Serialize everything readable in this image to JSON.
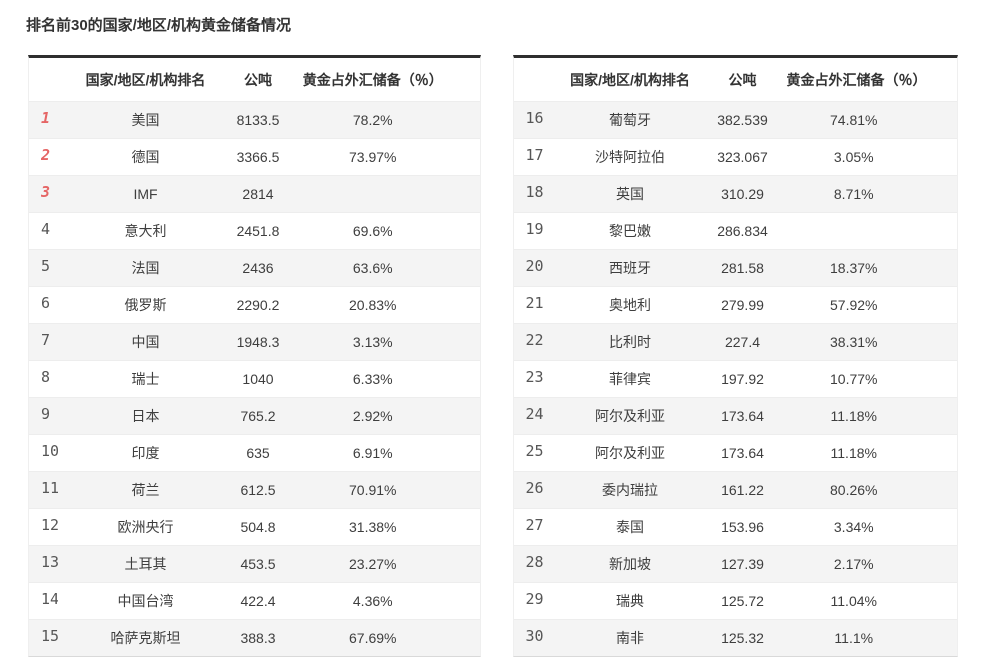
{
  "title": "排名前30的国家/地区/机构黄金储备情况",
  "columns": {
    "rank": "",
    "name": "国家/地区/机构排名",
    "tons": "公吨",
    "pct": "黄金占外汇储备（％）"
  },
  "accent_colors": {
    "top3_rank": "#e56565",
    "rank": "#565656",
    "row_alt_bg": "#f4f4f4",
    "table_top_border": "#2f2f2f"
  },
  "tables": [
    {
      "rows": [
        {
          "rank": "1",
          "name": "美国",
          "tons": "8133.5",
          "pct": "78.2%"
        },
        {
          "rank": "2",
          "name": "德国",
          "tons": "3366.5",
          "pct": "73.97%"
        },
        {
          "rank": "3",
          "name": "IMF",
          "tons": "2814",
          "pct": ""
        },
        {
          "rank": "4",
          "name": "意大利",
          "tons": "2451.8",
          "pct": "69.6%"
        },
        {
          "rank": "5",
          "name": "法国",
          "tons": "2436",
          "pct": "63.6%"
        },
        {
          "rank": "6",
          "name": "俄罗斯",
          "tons": "2290.2",
          "pct": "20.83%"
        },
        {
          "rank": "7",
          "name": "中国",
          "tons": "1948.3",
          "pct": "3.13%"
        },
        {
          "rank": "8",
          "name": "瑞士",
          "tons": "1040",
          "pct": "6.33%"
        },
        {
          "rank": "9",
          "name": "日本",
          "tons": "765.2",
          "pct": "2.92%"
        },
        {
          "rank": "10",
          "name": "印度",
          "tons": "635",
          "pct": "6.91%"
        },
        {
          "rank": "11",
          "name": "荷兰",
          "tons": "612.5",
          "pct": "70.91%"
        },
        {
          "rank": "12",
          "name": "欧洲央行",
          "tons": "504.8",
          "pct": "31.38%"
        },
        {
          "rank": "13",
          "name": "土耳其",
          "tons": "453.5",
          "pct": "23.27%"
        },
        {
          "rank": "14",
          "name": "中国台湾",
          "tons": "422.4",
          "pct": "4.36%"
        },
        {
          "rank": "15",
          "name": "哈萨克斯坦",
          "tons": "388.3",
          "pct": "67.69%"
        }
      ]
    },
    {
      "rows": [
        {
          "rank": "16",
          "name": "葡萄牙",
          "tons": "382.539",
          "pct": "74.81%"
        },
        {
          "rank": "17",
          "name": "沙特阿拉伯",
          "tons": "323.067",
          "pct": "3.05%"
        },
        {
          "rank": "18",
          "name": "英国",
          "tons": "310.29",
          "pct": "8.71%"
        },
        {
          "rank": "19",
          "name": "黎巴嫩",
          "tons": "286.834",
          "pct": ""
        },
        {
          "rank": "20",
          "name": "西班牙",
          "tons": "281.58",
          "pct": "18.37%"
        },
        {
          "rank": "21",
          "name": "奥地利",
          "tons": "279.99",
          "pct": "57.92%"
        },
        {
          "rank": "22",
          "name": "比利时",
          "tons": "227.4",
          "pct": "38.31%"
        },
        {
          "rank": "23",
          "name": "菲律宾",
          "tons": "197.92",
          "pct": "10.77%"
        },
        {
          "rank": "24",
          "name": "阿尔及利亚",
          "tons": "173.64",
          "pct": "11.18%"
        },
        {
          "rank": "25",
          "name": "阿尔及利亚",
          "tons": "173.64",
          "pct": "11.18%"
        },
        {
          "rank": "26",
          "name": "委内瑞拉",
          "tons": "161.22",
          "pct": "80.26%"
        },
        {
          "rank": "27",
          "name": "泰国",
          "tons": "153.96",
          "pct": "3.34%"
        },
        {
          "rank": "28",
          "name": "新加坡",
          "tons": "127.39",
          "pct": "2.17%"
        },
        {
          "rank": "29",
          "name": "瑞典",
          "tons": "125.72",
          "pct": "11.04%"
        },
        {
          "rank": "30",
          "name": "南非",
          "tons": "125.32",
          "pct": "11.1%"
        }
      ]
    }
  ],
  "chart_data": {
    "type": "table",
    "title": "排名前30的国家/地区/机构黄金储备情况",
    "columns": [
      "排名",
      "国家/地区/机构排名",
      "公吨",
      "黄金占外汇储备（％）"
    ],
    "layout": "two side-by-side tables, ranks 1-15 left and 16-30 right, alternating gray/white rows, top-3 ranks highlighted red",
    "rows": [
      [
        1,
        "美国",
        8133.5,
        "78.2%"
      ],
      [
        2,
        "德国",
        3366.5,
        "73.97%"
      ],
      [
        3,
        "IMF",
        2814,
        ""
      ],
      [
        4,
        "意大利",
        2451.8,
        "69.6%"
      ],
      [
        5,
        "法国",
        2436,
        "63.6%"
      ],
      [
        6,
        "俄罗斯",
        2290.2,
        "20.83%"
      ],
      [
        7,
        "中国",
        1948.3,
        "3.13%"
      ],
      [
        8,
        "瑞士",
        1040,
        "6.33%"
      ],
      [
        9,
        "日本",
        765.2,
        "2.92%"
      ],
      [
        10,
        "印度",
        635,
        "6.91%"
      ],
      [
        11,
        "荷兰",
        612.5,
        "70.91%"
      ],
      [
        12,
        "欧洲央行",
        504.8,
        "31.38%"
      ],
      [
        13,
        "土耳其",
        453.5,
        "23.27%"
      ],
      [
        14,
        "中国台湾",
        422.4,
        "4.36%"
      ],
      [
        15,
        "哈萨克斯坦",
        388.3,
        "67.69%"
      ],
      [
        16,
        "葡萄牙",
        382.539,
        "74.81%"
      ],
      [
        17,
        "沙特阿拉伯",
        323.067,
        "3.05%"
      ],
      [
        18,
        "英国",
        310.29,
        "8.71%"
      ],
      [
        19,
        "黎巴嫩",
        286.834,
        ""
      ],
      [
        20,
        "西班牙",
        281.58,
        "18.37%"
      ],
      [
        21,
        "奥地利",
        279.99,
        "57.92%"
      ],
      [
        22,
        "比利时",
        227.4,
        "38.31%"
      ],
      [
        23,
        "菲律宾",
        197.92,
        "10.77%"
      ],
      [
        24,
        "阿尔及利亚",
        173.64,
        "11.18%"
      ],
      [
        25,
        "阿尔及利亚",
        173.64,
        "11.18%"
      ],
      [
        26,
        "委内瑞拉",
        161.22,
        "80.26%"
      ],
      [
        27,
        "泰国",
        153.96,
        "3.34%"
      ],
      [
        28,
        "新加坡",
        127.39,
        "2.17%"
      ],
      [
        29,
        "瑞典",
        125.72,
        "11.04%"
      ],
      [
        30,
        "南非",
        125.32,
        "11.1%"
      ]
    ]
  }
}
